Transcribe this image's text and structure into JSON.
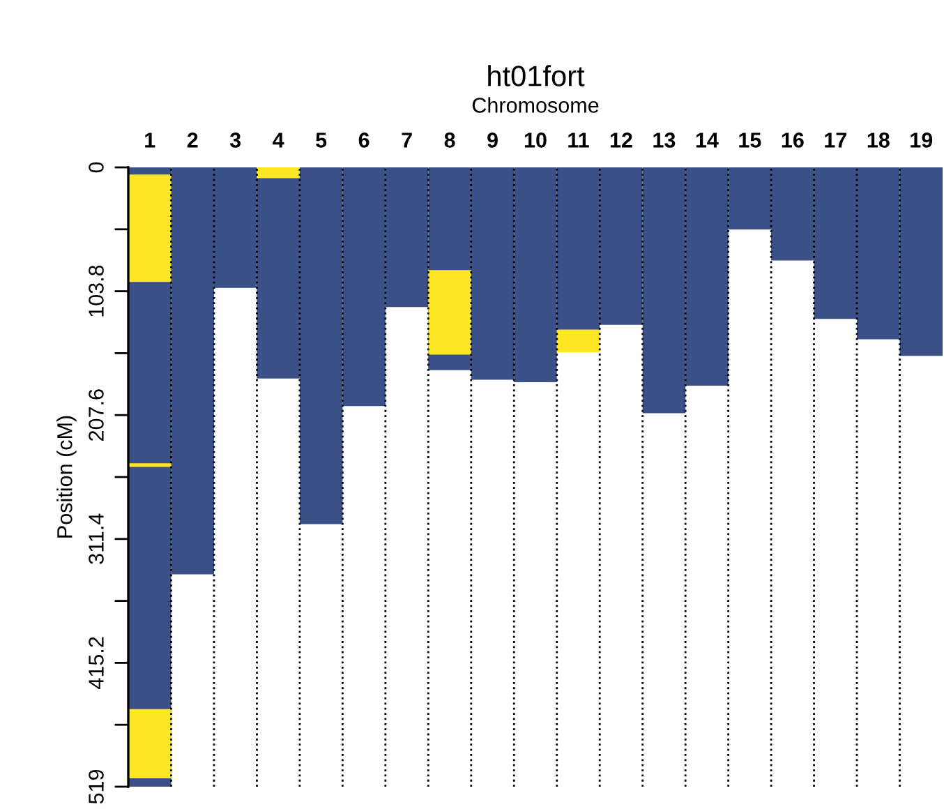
{
  "chart_data": {
    "type": "bar",
    "title": "ht01fort",
    "xlabel": "Chromosome",
    "ylabel": "Position (cM)",
    "categories": [
      "1",
      "2",
      "3",
      "4",
      "5",
      "6",
      "7",
      "8",
      "9",
      "10",
      "11",
      "12",
      "13",
      "14",
      "15",
      "16",
      "17",
      "18",
      "19"
    ],
    "series": [
      {
        "color": "#3a5087",
        "base": [
          0,
          0,
          0,
          0,
          0,
          0,
          0,
          0,
          0,
          0,
          0,
          0,
          0,
          0,
          0,
          0,
          0,
          0,
          0
        ],
        "values": [
          519,
          341,
          101,
          177,
          299,
          200,
          117,
          170,
          178,
          180,
          136,
          132,
          206,
          183,
          52,
          78,
          127,
          144,
          158
        ]
      },
      {
        "color": "#fde725",
        "base": [
          6,
          null,
          null,
          0,
          null,
          null,
          null,
          86,
          null,
          null,
          136,
          null,
          null,
          null,
          null,
          null,
          null,
          null,
          null
        ],
        "values": [
          90,
          null,
          null,
          9,
          null,
          null,
          null,
          71,
          null,
          null,
          19,
          null,
          null,
          null,
          null,
          null,
          null,
          null,
          null
        ]
      },
      {
        "color": "#fde725",
        "base": [
          248,
          null,
          null,
          null,
          null,
          null,
          null,
          null,
          null,
          null,
          null,
          null,
          null,
          null,
          null,
          null,
          null,
          null,
          null
        ],
        "values": [
          3,
          null,
          null,
          null,
          null,
          null,
          null,
          null,
          null,
          null,
          null,
          null,
          null,
          null,
          null,
          null,
          null,
          null,
          null
        ]
      },
      {
        "color": "#fde725",
        "base": [
          454,
          null,
          null,
          null,
          null,
          null,
          null,
          null,
          null,
          null,
          null,
          null,
          null,
          null,
          null,
          null,
          null,
          null,
          null
        ],
        "values": [
          58,
          null,
          null,
          null,
          null,
          null,
          null,
          null,
          null,
          null,
          null,
          null,
          null,
          null,
          null,
          null,
          null,
          null,
          null
        ]
      }
    ],
    "ylim": [
      519,
      0
    ],
    "yticks": [
      0,
      {
        "value": 51.9,
        "label": null
      },
      103.8,
      {
        "value": 155.7,
        "label": null
      },
      207.6,
      {
        "value": 259.5,
        "label": null
      },
      311.4,
      {
        "value": 363.3,
        "label": null
      },
      415.2,
      {
        "value": 467.1,
        "label": null
      },
      519
    ],
    "grid": "x",
    "line_style": "dotted"
  }
}
